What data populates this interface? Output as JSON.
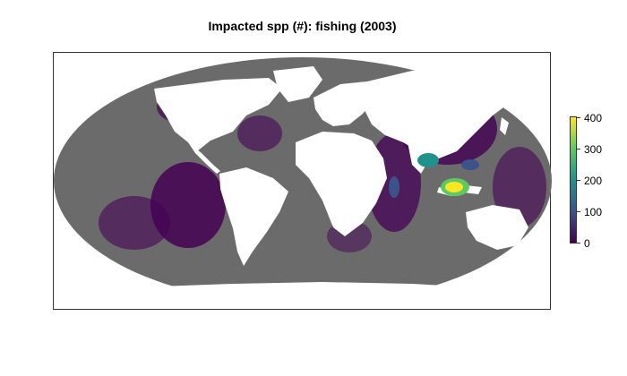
{
  "title": "Impacted spp (#): fishing (2003)",
  "legend": {
    "ticks": [
      "0",
      "100",
      "200",
      "300",
      "400"
    ],
    "scale_min": 0,
    "scale_max": 400,
    "palette": [
      "#440154",
      "#3b528b",
      "#21918c",
      "#5ec962",
      "#fde725"
    ]
  },
  "map": {
    "projection": "Mollweide",
    "ocean_color": "#6b6b6b",
    "land_color": "#ffffff",
    "low_impact_color": "#440154",
    "high_impact_color": "#fde725"
  }
}
